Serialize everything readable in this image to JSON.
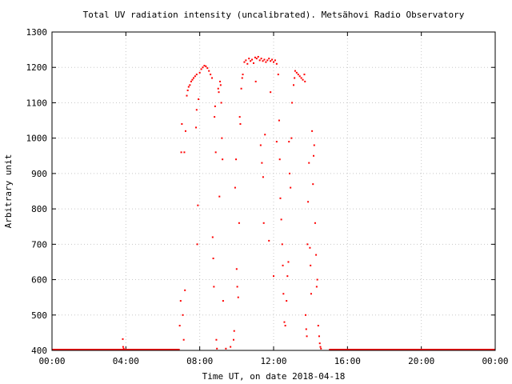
{
  "chart_data": {
    "type": "scatter",
    "title": "Total UV radiation intensity (uncalibrated). Metsähovi Radio Observatory",
    "xlabel": "Time UT, on date 2018-04-18",
    "ylabel": "Arbitrary unit",
    "xlim": [
      "00:00",
      "24:00"
    ],
    "x_ticks": [
      "00:00",
      "04:00",
      "08:00",
      "12:00",
      "16:00",
      "20:00",
      "00:00"
    ],
    "ylim": [
      400,
      1300
    ],
    "y_ticks": [
      400,
      500,
      600,
      700,
      800,
      900,
      1000,
      1100,
      1200,
      1300
    ],
    "grid": true,
    "marker_color": "#ff0000",
    "series": [
      {
        "baseline": [
          [
            "00:00",
            400
          ],
          [
            "06:55",
            400
          ],
          [
            "15:00",
            400
          ],
          [
            "24:00",
            400
          ]
        ],
        "points": [
          [
            "03:50",
            432
          ],
          [
            "03:51",
            410
          ],
          [
            "03:53",
            405
          ],
          [
            "06:55",
            470
          ],
          [
            "06:58",
            540
          ],
          [
            "07:00",
            960
          ],
          [
            "07:02",
            1040
          ],
          [
            "07:05",
            500
          ],
          [
            "07:08",
            430
          ],
          [
            "07:10",
            960
          ],
          [
            "07:12",
            570
          ],
          [
            "07:14",
            1020
          ],
          [
            "07:18",
            1120
          ],
          [
            "07:21",
            1135
          ],
          [
            "07:24",
            1145
          ],
          [
            "07:28",
            1150
          ],
          [
            "07:32",
            1160
          ],
          [
            "07:36",
            1165
          ],
          [
            "07:40",
            1170
          ],
          [
            "07:45",
            1175
          ],
          [
            "07:50",
            1180
          ],
          [
            "07:48",
            1030
          ],
          [
            "07:50",
            1080
          ],
          [
            "07:52",
            700
          ],
          [
            "07:54",
            810
          ],
          [
            "07:56",
            1110
          ],
          [
            "08:00",
            1185
          ],
          [
            "08:05",
            1195
          ],
          [
            "08:10",
            1200
          ],
          [
            "08:15",
            1205
          ],
          [
            "08:20",
            1203
          ],
          [
            "08:25",
            1198
          ],
          [
            "08:30",
            1190
          ],
          [
            "08:35",
            1180
          ],
          [
            "08:40",
            1170
          ],
          [
            "08:42",
            720
          ],
          [
            "08:44",
            660
          ],
          [
            "08:46",
            580
          ],
          [
            "08:48",
            1060
          ],
          [
            "08:50",
            1090
          ],
          [
            "08:52",
            960
          ],
          [
            "08:54",
            430
          ],
          [
            "08:56",
            405
          ],
          [
            "09:00",
            1140
          ],
          [
            "09:02",
            1130
          ],
          [
            "09:04",
            835
          ],
          [
            "09:06",
            1160
          ],
          [
            "09:08",
            1150
          ],
          [
            "09:10",
            1100
          ],
          [
            "09:12",
            1000
          ],
          [
            "09:14",
            940
          ],
          [
            "09:16",
            540
          ],
          [
            "09:25",
            405
          ],
          [
            "09:40",
            410
          ],
          [
            "09:50",
            430
          ],
          [
            "09:52",
            455
          ],
          [
            "09:55",
            860
          ],
          [
            "09:58",
            940
          ],
          [
            "10:00",
            630
          ],
          [
            "10:02",
            580
          ],
          [
            "10:05",
            550
          ],
          [
            "10:08",
            760
          ],
          [
            "10:10",
            1060
          ],
          [
            "10:12",
            1040
          ],
          [
            "10:15",
            1140
          ],
          [
            "10:18",
            1170
          ],
          [
            "10:20",
            1180
          ],
          [
            "10:25",
            1215
          ],
          [
            "10:30",
            1220
          ],
          [
            "10:35",
            1210
          ],
          [
            "10:40",
            1225
          ],
          [
            "10:45",
            1218
          ],
          [
            "10:50",
            1222
          ],
          [
            "10:55",
            1212
          ],
          [
            "11:00",
            1228
          ],
          [
            "11:05",
            1225
          ],
          [
            "11:10",
            1230
          ],
          [
            "11:15",
            1220
          ],
          [
            "11:20",
            1225
          ],
          [
            "11:25",
            1218
          ],
          [
            "11:30",
            1222
          ],
          [
            "11:35",
            1215
          ],
          [
            "11:40",
            1220
          ],
          [
            "11:45",
            1225
          ],
          [
            "11:50",
            1218
          ],
          [
            "11:55",
            1222
          ],
          [
            "12:00",
            1215
          ],
          [
            "12:05",
            1220
          ],
          [
            "12:10",
            1210
          ],
          [
            "11:02",
            1160
          ],
          [
            "11:18",
            980
          ],
          [
            "11:22",
            930
          ],
          [
            "11:26",
            890
          ],
          [
            "11:28",
            760
          ],
          [
            "11:32",
            1010
          ],
          [
            "11:45",
            710
          ],
          [
            "11:50",
            1130
          ],
          [
            "12:00",
            610
          ],
          [
            "12:10",
            990
          ],
          [
            "12:15",
            1180
          ],
          [
            "12:18",
            1050
          ],
          [
            "12:20",
            940
          ],
          [
            "12:22",
            830
          ],
          [
            "12:25",
            770
          ],
          [
            "12:28",
            700
          ],
          [
            "12:30",
            640
          ],
          [
            "12:32",
            560
          ],
          [
            "12:35",
            480
          ],
          [
            "12:38",
            470
          ],
          [
            "12:42",
            540
          ],
          [
            "12:45",
            610
          ],
          [
            "12:48",
            650
          ],
          [
            "12:50",
            990
          ],
          [
            "12:52",
            900
          ],
          [
            "12:55",
            860
          ],
          [
            "12:58",
            1000
          ],
          [
            "13:00",
            1100
          ],
          [
            "13:05",
            1150
          ],
          [
            "13:08",
            1170
          ],
          [
            "13:10",
            1190
          ],
          [
            "13:15",
            1185
          ],
          [
            "13:20",
            1180
          ],
          [
            "13:25",
            1175
          ],
          [
            "13:30",
            1170
          ],
          [
            "13:35",
            1165
          ],
          [
            "13:40",
            1180
          ],
          [
            "13:42",
            1160
          ],
          [
            "13:44",
            500
          ],
          [
            "13:46",
            460
          ],
          [
            "13:48",
            440
          ],
          [
            "13:50",
            700
          ],
          [
            "13:52",
            820
          ],
          [
            "13:55",
            930
          ],
          [
            "13:58",
            690
          ],
          [
            "14:00",
            640
          ],
          [
            "14:02",
            560
          ],
          [
            "14:05",
            1020
          ],
          [
            "14:08",
            870
          ],
          [
            "14:10",
            950
          ],
          [
            "14:12",
            980
          ],
          [
            "14:15",
            760
          ],
          [
            "14:18",
            670
          ],
          [
            "14:20",
            580
          ],
          [
            "14:22",
            600
          ],
          [
            "14:25",
            470
          ],
          [
            "14:28",
            440
          ],
          [
            "14:30",
            420
          ],
          [
            "14:32",
            410
          ],
          [
            "14:34",
            405
          ]
        ]
      }
    ]
  }
}
